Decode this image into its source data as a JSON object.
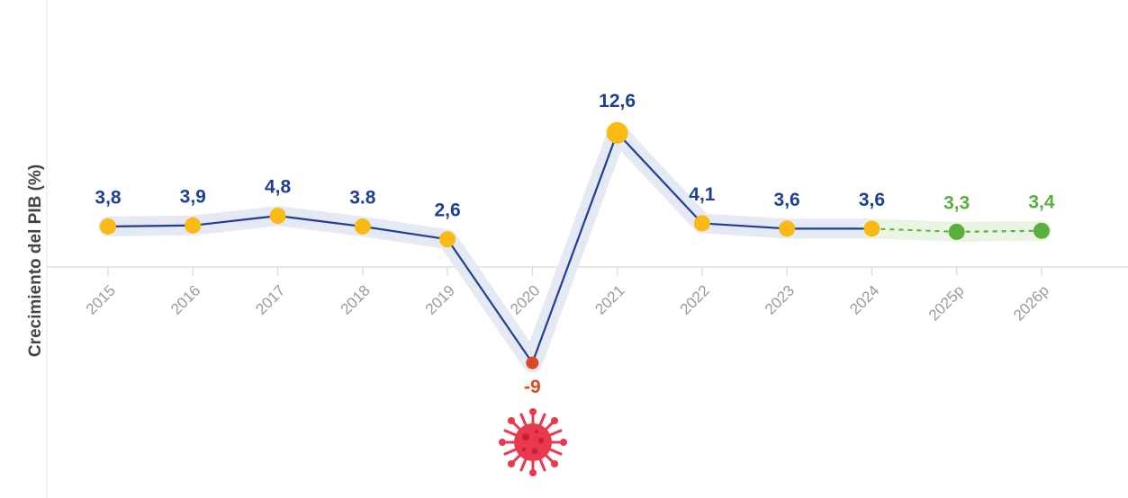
{
  "chart_data": {
    "type": "line",
    "y_label": "Crecimiento del PIB (%)",
    "categories": [
      "2015",
      "2016",
      "2017",
      "2018",
      "2019",
      "2020",
      "2021",
      "2022",
      "2023",
      "2024",
      "2025p",
      "2026p"
    ],
    "series": [
      {
        "color": "#1f3f94",
        "marker_color": "#fbb913",
        "negative_color": "#d94a1f",
        "halo_color": "#e4e9f3",
        "dashed": false,
        "values": [
          3.8,
          3.9,
          4.8,
          3.8,
          2.6,
          -9,
          12.6,
          4.1,
          3.6,
          3.6,
          null,
          null
        ],
        "value_labels": [
          "3,8",
          "3,9",
          "4,8",
          "3.8",
          "2,6",
          "-9",
          "12,6",
          "4,1",
          "3,6",
          "3,6",
          null,
          null
        ]
      },
      {
        "color": "#5aaf3c",
        "marker_color": "#5aaf3c",
        "negative_color": "#5aaf3c",
        "halo_color": "#e9f4e2",
        "dashed": true,
        "values": [
          null,
          null,
          null,
          null,
          null,
          null,
          null,
          null,
          null,
          null,
          3.3,
          3.4
        ],
        "value_labels": [
          null,
          null,
          null,
          null,
          null,
          null,
          null,
          null,
          null,
          null,
          "3,3",
          "3,4"
        ]
      }
    ],
    "ylim": [
      -20,
      20
    ]
  }
}
